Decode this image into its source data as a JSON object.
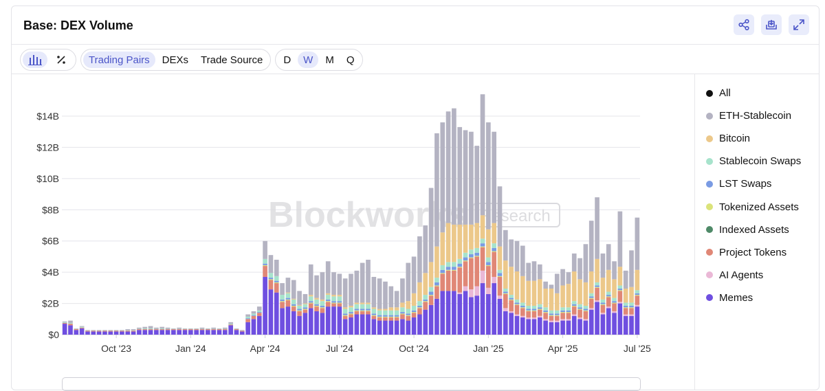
{
  "title": "Base: DEX Volume",
  "actions": [
    "share-icon",
    "download-icon",
    "expand-icon"
  ],
  "toolbar": {
    "chart_types": [
      "bar-chart-icon",
      "percent-icon"
    ],
    "groupings": [
      "Trading Pairs",
      "DEXs",
      "Trade Source"
    ],
    "grouping_selected": "Trading Pairs",
    "intervals": [
      "D",
      "W",
      "M",
      "Q"
    ],
    "interval_selected": "W"
  },
  "legend": [
    {
      "label": "All",
      "color": "#111111"
    },
    {
      "label": "ETH-Stablecoin",
      "color": "#b4b3c2"
    },
    {
      "label": "Bitcoin",
      "color": "#ecc88a"
    },
    {
      "label": "Stablecoin Swaps",
      "color": "#a7e3cc"
    },
    {
      "label": "LST Swaps",
      "color": "#7a9be3"
    },
    {
      "label": "Tokenized Assets",
      "color": "#dbe37a"
    },
    {
      "label": "Indexed Assets",
      "color": "#4f8a68"
    },
    {
      "label": "Project Tokens",
      "color": "#e08776"
    },
    {
      "label": "AI Agents",
      "color": "#eab8d6"
    },
    {
      "label": "Memes",
      "color": "#6f4fe0"
    }
  ],
  "watermark": {
    "main": "Blockworks",
    "sub": "Research"
  },
  "chart_data": {
    "type": "bar",
    "stacked": true,
    "interval": "weekly",
    "y_tick_labels": [
      "$0",
      "$2B",
      "$4B",
      "$6B",
      "$8B",
      "$10B",
      "$12B",
      "$14B"
    ],
    "y_ticks": [
      0,
      2,
      4,
      6,
      8,
      10,
      12,
      14
    ],
    "ylim": [
      0,
      15.5
    ],
    "y_unit": "billion USD",
    "x_tick_labels": [
      "Oct '23",
      "Jan '24",
      "Apr '24",
      "Jul '24",
      "Oct '24",
      "Jan '25",
      "Apr '25",
      "Jul '25"
    ],
    "x_tick_bar_index": [
      9,
      22,
      35,
      48,
      61,
      74,
      87,
      100
    ],
    "series_order": [
      "Memes",
      "AI Agents",
      "Project Tokens",
      "Indexed Assets",
      "Tokenized Assets",
      "LST Swaps",
      "Stablecoin Swaps",
      "Bitcoin",
      "ETH-Stablecoin"
    ],
    "series_colors": [
      "#6f4fe0",
      "#eab8d6",
      "#e08776",
      "#4f8a68",
      "#dbe37a",
      "#7a9be3",
      "#a7e3cc",
      "#ecc88a",
      "#b4b3c2"
    ],
    "totals": [
      0.85,
      0.9,
      0.4,
      0.55,
      0.3,
      0.3,
      0.3,
      0.3,
      0.3,
      0.3,
      0.3,
      0.35,
      0.35,
      0.45,
      0.5,
      0.55,
      0.45,
      0.5,
      0.45,
      0.4,
      0.45,
      0.4,
      0.4,
      0.4,
      0.45,
      0.4,
      0.45,
      0.4,
      0.45,
      0.8,
      0.4,
      0.3,
      1.3,
      1.5,
      1.8,
      6.0,
      5.1,
      4.8,
      3.3,
      3.6,
      3.5,
      2.8,
      2.6,
      4.5,
      3.8,
      4.0,
      4.7,
      4.0,
      3.9,
      3.6,
      3.9,
      4.1,
      4.6,
      4.8,
      3.6,
      3.6,
      3.4,
      3.1,
      2.8,
      3.6,
      4.6,
      5.0,
      6.3,
      7.0,
      9.6,
      12.9,
      13.6,
      14.3,
      14.5,
      13.3,
      12.9,
      13.0,
      12.1,
      15.2,
      13.6,
      12.9,
      9.5,
      6.7,
      6.1,
      6.0,
      5.7,
      4.6,
      4.7,
      4.5,
      3.4,
      3.2,
      3.9,
      4.2,
      4.0,
      5.2,
      4.9,
      5.8,
      7.3,
      8.6,
      5.2,
      5.8,
      4.7,
      7.9,
      4.1,
      5.4,
      7.5
    ],
    "memes": [
      0.7,
      0.6,
      0.3,
      0.4,
      0.2,
      0.2,
      0.2,
      0.2,
      0.2,
      0.2,
      0.2,
      0.2,
      0.2,
      0.3,
      0.3,
      0.3,
      0.3,
      0.3,
      0.3,
      0.3,
      0.3,
      0.3,
      0.3,
      0.3,
      0.3,
      0.3,
      0.3,
      0.3,
      0.3,
      0.6,
      0.3,
      0.2,
      0.8,
      1.0,
      1.2,
      3.7,
      2.9,
      2.7,
      1.7,
      1.8,
      1.5,
      1.2,
      1.4,
      1.7,
      1.5,
      1.4,
      1.8,
      1.8,
      1.8,
      1.0,
      1.1,
      1.3,
      1.3,
      1.3,
      1.0,
      0.9,
      0.9,
      0.9,
      0.9,
      1.0,
      0.9,
      1.1,
      1.3,
      1.6,
      1.9,
      2.3,
      2.8,
      2.8,
      2.8,
      2.6,
      2.8,
      2.4,
      2.5,
      3.3,
      2.6,
      3.3,
      2.3,
      1.5,
      1.4,
      1.2,
      1.1,
      1.0,
      1.0,
      1.1,
      0.9,
      0.8,
      0.8,
      0.9,
      0.9,
      1.2,
      1.0,
      0.9,
      1.6,
      2.1,
      1.3,
      1.7,
      1.4,
      2.0,
      1.2,
      1.2,
      1.8
    ],
    "ai_agents": [
      0,
      0,
      0,
      0,
      0,
      0,
      0,
      0,
      0,
      0,
      0,
      0,
      0,
      0,
      0,
      0,
      0,
      0,
      0,
      0,
      0,
      0,
      0,
      0,
      0,
      0,
      0,
      0,
      0,
      0,
      0,
      0,
      0,
      0,
      0,
      0,
      0,
      0,
      0,
      0,
      0,
      0,
      0,
      0,
      0,
      0,
      0,
      0,
      0,
      0,
      0,
      0,
      0,
      0,
      0,
      0,
      0,
      0,
      0,
      0,
      0,
      0,
      0,
      0,
      0,
      0,
      0,
      0,
      0,
      0.1,
      0.3,
      0.5,
      0.6,
      0.8,
      0.4,
      0.4,
      0.2,
      0.2,
      0.1,
      0.1,
      0.1,
      0.1,
      0.1,
      0.1,
      0.1,
      0.1,
      0.1,
      0.1,
      0.1,
      0.1,
      0.1,
      0.1,
      0.1,
      0.1,
      0.1,
      0.1,
      0.1,
      0.1,
      0.1,
      0.1,
      0.1
    ],
    "project_tokens": [
      0.05,
      0.1,
      0.05,
      0.05,
      0.05,
      0.05,
      0.05,
      0.05,
      0.05,
      0.05,
      0.05,
      0.05,
      0.05,
      0.05,
      0.05,
      0.05,
      0.05,
      0.05,
      0.05,
      0.05,
      0.05,
      0.05,
      0.05,
      0.05,
      0.05,
      0.05,
      0.05,
      0.05,
      0.05,
      0.05,
      0.05,
      0.05,
      0.2,
      0.2,
      0.2,
      0.7,
      0.6,
      0.6,
      0.4,
      0.4,
      0.3,
      0.3,
      0.2,
      0.3,
      0.3,
      0.3,
      0.3,
      0.2,
      0.2,
      0.2,
      0.2,
      0.2,
      0.2,
      0.2,
      0.2,
      0.2,
      0.2,
      0.2,
      0.2,
      0.3,
      0.3,
      0.3,
      0.4,
      0.5,
      0.6,
      0.8,
      1.1,
      1.3,
      1.3,
      1.6,
      1.6,
      2.0,
      1.9,
      1.5,
      1.4,
      1.6,
      1.2,
      0.9,
      0.7,
      0.6,
      0.5,
      0.4,
      0.4,
      0.4,
      0.4,
      0.3,
      0.3,
      0.4,
      0.4,
      0.5,
      0.5,
      0.5,
      0.6,
      0.8,
      0.5,
      0.6,
      0.5,
      0.7,
      0.4,
      0.4,
      0.6
    ],
    "indexed_assets": [
      0,
      0,
      0,
      0,
      0,
      0,
      0,
      0,
      0,
      0,
      0,
      0,
      0,
      0,
      0,
      0,
      0,
      0,
      0,
      0,
      0,
      0,
      0,
      0,
      0,
      0,
      0,
      0,
      0,
      0,
      0,
      0,
      0,
      0,
      0,
      0,
      0,
      0,
      0,
      0,
      0,
      0,
      0,
      0,
      0,
      0,
      0,
      0,
      0,
      0,
      0,
      0,
      0,
      0,
      0,
      0,
      0,
      0,
      0,
      0,
      0,
      0,
      0,
      0,
      0,
      0,
      0,
      0,
      0,
      0,
      0,
      0,
      0,
      0,
      0,
      0,
      0,
      0,
      0,
      0,
      0,
      0,
      0,
      0,
      0,
      0,
      0,
      0,
      0,
      0,
      0,
      0,
      0,
      0,
      0,
      0,
      0,
      0,
      0,
      0,
      0
    ],
    "tokenized_assets": [
      0,
      0,
      0,
      0,
      0,
      0,
      0,
      0,
      0,
      0,
      0,
      0,
      0,
      0,
      0,
      0,
      0,
      0,
      0,
      0,
      0,
      0,
      0,
      0,
      0,
      0,
      0,
      0,
      0,
      0,
      0,
      0,
      0,
      0,
      0,
      0.05,
      0.05,
      0.05,
      0.05,
      0.05,
      0.05,
      0.05,
      0.05,
      0.05,
      0.05,
      0.05,
      0.05,
      0.05,
      0.05,
      0.05,
      0.05,
      0.05,
      0.05,
      0.05,
      0.05,
      0.05,
      0.05,
      0.05,
      0.05,
      0.05,
      0.05,
      0.05,
      0.05,
      0.05,
      0.05,
      0.05,
      0.05,
      0.05,
      0.05,
      0.05,
      0.05,
      0.05,
      0.05,
      0.05,
      0.05,
      0.05,
      0.05,
      0.05,
      0.05,
      0.05,
      0.05,
      0.05,
      0.05,
      0.05,
      0.05,
      0.05,
      0.05,
      0.05,
      0.05,
      0.05,
      0.05,
      0.05,
      0.05,
      0.05,
      0.05,
      0.05,
      0.05,
      0.05,
      0.05,
      0.05,
      0.05
    ],
    "lst_swaps": [
      0,
      0,
      0,
      0,
      0,
      0,
      0,
      0,
      0,
      0,
      0,
      0,
      0,
      0,
      0,
      0,
      0,
      0,
      0,
      0,
      0,
      0,
      0,
      0,
      0,
      0,
      0,
      0,
      0,
      0,
      0,
      0,
      0.05,
      0.05,
      0.05,
      0.1,
      0.1,
      0.1,
      0.1,
      0.1,
      0.1,
      0.1,
      0.1,
      0.1,
      0.1,
      0.1,
      0.1,
      0.1,
      0.1,
      0.1,
      0.1,
      0.1,
      0.1,
      0.1,
      0.1,
      0.1,
      0.1,
      0.1,
      0.1,
      0.1,
      0.1,
      0.1,
      0.1,
      0.1,
      0.2,
      0.2,
      0.2,
      0.2,
      0.2,
      0.2,
      0.2,
      0.2,
      0.2,
      0.2,
      0.2,
      0.2,
      0.2,
      0.1,
      0.1,
      0.1,
      0.1,
      0.1,
      0.1,
      0.1,
      0.1,
      0.1,
      0.1,
      0.1,
      0.1,
      0.1,
      0.1,
      0.1,
      0.1,
      0.1,
      0.1,
      0.1,
      0.1,
      0.1,
      0.1,
      0.1,
      0.1
    ],
    "stablecoin_swaps": [
      0.05,
      0.05,
      0.02,
      0.05,
      0.02,
      0.02,
      0.02,
      0.02,
      0.02,
      0.02,
      0.02,
      0.02,
      0.02,
      0.02,
      0.05,
      0.05,
      0.02,
      0.05,
      0.02,
      0.02,
      0.02,
      0.02,
      0.02,
      0.02,
      0.02,
      0.02,
      0.02,
      0.02,
      0.02,
      0.05,
      0.02,
      0.02,
      0.1,
      0.1,
      0.1,
      0.3,
      0.3,
      0.3,
      0.3,
      0.3,
      0.3,
      0.2,
      0.2,
      0.3,
      0.3,
      0.3,
      0.3,
      0.3,
      0.3,
      0.3,
      0.3,
      0.3,
      0.3,
      0.3,
      0.3,
      0.3,
      0.3,
      0.3,
      0.3,
      0.3,
      0.3,
      0.3,
      0.3,
      0.3,
      0.3,
      0.3,
      0.3,
      0.3,
      0.3,
      0.3,
      0.3,
      0.3,
      0.3,
      0.3,
      0.3,
      0.3,
      0.2,
      0.2,
      0.2,
      0.2,
      0.2,
      0.2,
      0.2,
      0.2,
      0.2,
      0.2,
      0.2,
      0.2,
      0.2,
      0.2,
      0.2,
      0.2,
      0.2,
      0.2,
      0.2,
      0.2,
      0.2,
      0.2,
      0.2,
      0.2,
      0.2
    ],
    "bitcoin": [
      0,
      0,
      0,
      0,
      0,
      0,
      0,
      0,
      0,
      0,
      0,
      0,
      0,
      0,
      0,
      0,
      0,
      0,
      0,
      0,
      0,
      0,
      0,
      0,
      0,
      0,
      0,
      0,
      0,
      0,
      0,
      0,
      0,
      0,
      0,
      0,
      0,
      0,
      0,
      0.05,
      0.05,
      0.05,
      0.05,
      0.1,
      0.1,
      0.1,
      0.1,
      0.1,
      0.1,
      0.1,
      0.1,
      0.1,
      0.1,
      0.1,
      0.1,
      0.1,
      0.1,
      0.2,
      0.2,
      0.3,
      0.5,
      0.8,
      1.2,
      1.4,
      1.6,
      2.0,
      2.1,
      2.5,
      2.4,
      2.2,
      1.8,
      1.6,
      1.6,
      1.5,
      1.8,
      1.3,
      1.5,
      1.8,
      1.8,
      1.8,
      1.7,
      1.6,
      1.6,
      1.6,
      1.2,
      1.4,
      1.1,
      1.4,
      1.5,
      1.9,
      1.6,
      1.5,
      1.4,
      1.5,
      1.4,
      1.4,
      1.2,
      1.2,
      0.9,
      1.0,
      1.3
    ],
    "eth_stablecoin": [
      0.05,
      0.15,
      0.03,
      0.05,
      0.03,
      0.03,
      0.03,
      0.03,
      0.03,
      0.03,
      0.03,
      0.08,
      0.08,
      0.08,
      0.1,
      0.15,
      0.08,
      0.1,
      0.08,
      0.03,
      0.08,
      0.03,
      0.03,
      0.03,
      0.08,
      0.03,
      0.08,
      0.03,
      0.08,
      0.1,
      0.03,
      0.03,
      0.15,
      0.15,
      0.25,
      1.15,
      1.15,
      1.05,
      0.75,
      0.95,
      1.2,
      0.9,
      0.6,
      1.95,
      1.45,
      1.75,
      2.05,
      1.45,
      1.35,
      1.85,
      2.05,
      2.05,
      2.55,
      2.75,
      1.95,
      1.95,
      1.75,
      1.35,
      1.05,
      1.55,
      2.45,
      2.35,
      2.95,
      3.05,
      4.75,
      7.25,
      7.05,
      7.15,
      7.45,
      6.25,
      6.05,
      5.95,
      4.95,
      7.75,
      6.85,
      5.85,
      3.85,
      1.95,
      1.75,
      1.95,
      1.95,
      1.15,
      1.25,
      0.95,
      0.45,
      0.25,
      1.25,
      1.05,
      0.75,
      1.15,
      1.35,
      2.45,
      3.25,
      3.95,
      1.55,
      1.65,
      1.15,
      3.55,
      1.15,
      2.35,
      3.35
    ]
  }
}
